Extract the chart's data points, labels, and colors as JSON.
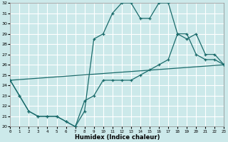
{
  "xlabel": "Humidex (Indice chaleur)",
  "bg_color": "#cce9ea",
  "grid_color": "#b0d4d6",
  "line_color": "#1a6b6b",
  "xlim": [
    0,
    23
  ],
  "ylim": [
    20,
    32
  ],
  "yticks": [
    20,
    21,
    22,
    23,
    24,
    25,
    26,
    27,
    28,
    29,
    30,
    31,
    32
  ],
  "xticks": [
    0,
    1,
    2,
    3,
    4,
    5,
    6,
    7,
    8,
    9,
    10,
    11,
    12,
    13,
    14,
    15,
    16,
    17,
    18,
    19,
    20,
    21,
    22,
    23
  ],
  "curve1_x": [
    0,
    1,
    2,
    3,
    4,
    5,
    6,
    7,
    8,
    9,
    10,
    11,
    12,
    13,
    14,
    15,
    16,
    17,
    18,
    19,
    20,
    21,
    22,
    23
  ],
  "curve1_y": [
    24.5,
    23.0,
    21.5,
    21.0,
    21.0,
    21.0,
    20.5,
    20.0,
    21.5,
    28.5,
    29.0,
    31.0,
    32.0,
    32.0,
    30.5,
    30.5,
    32.0,
    32.0,
    29.0,
    29.0,
    27.0,
    26.5,
    26.5,
    26.0
  ],
  "curve2_x": [
    0,
    1,
    2,
    3,
    4,
    5,
    6,
    7,
    8,
    9,
    10,
    11,
    12,
    13,
    14,
    15,
    16,
    17,
    18,
    19,
    20,
    21,
    22,
    23
  ],
  "curve2_y": [
    24.5,
    23.0,
    21.5,
    21.0,
    21.0,
    21.0,
    20.5,
    20.0,
    22.5,
    23.0,
    24.5,
    24.5,
    24.5,
    24.5,
    25.0,
    25.5,
    26.0,
    26.5,
    29.0,
    28.5,
    29.0,
    27.0,
    27.0,
    26.0
  ],
  "curve3_x": [
    0,
    23
  ],
  "curve3_y": [
    24.5,
    26.0
  ]
}
